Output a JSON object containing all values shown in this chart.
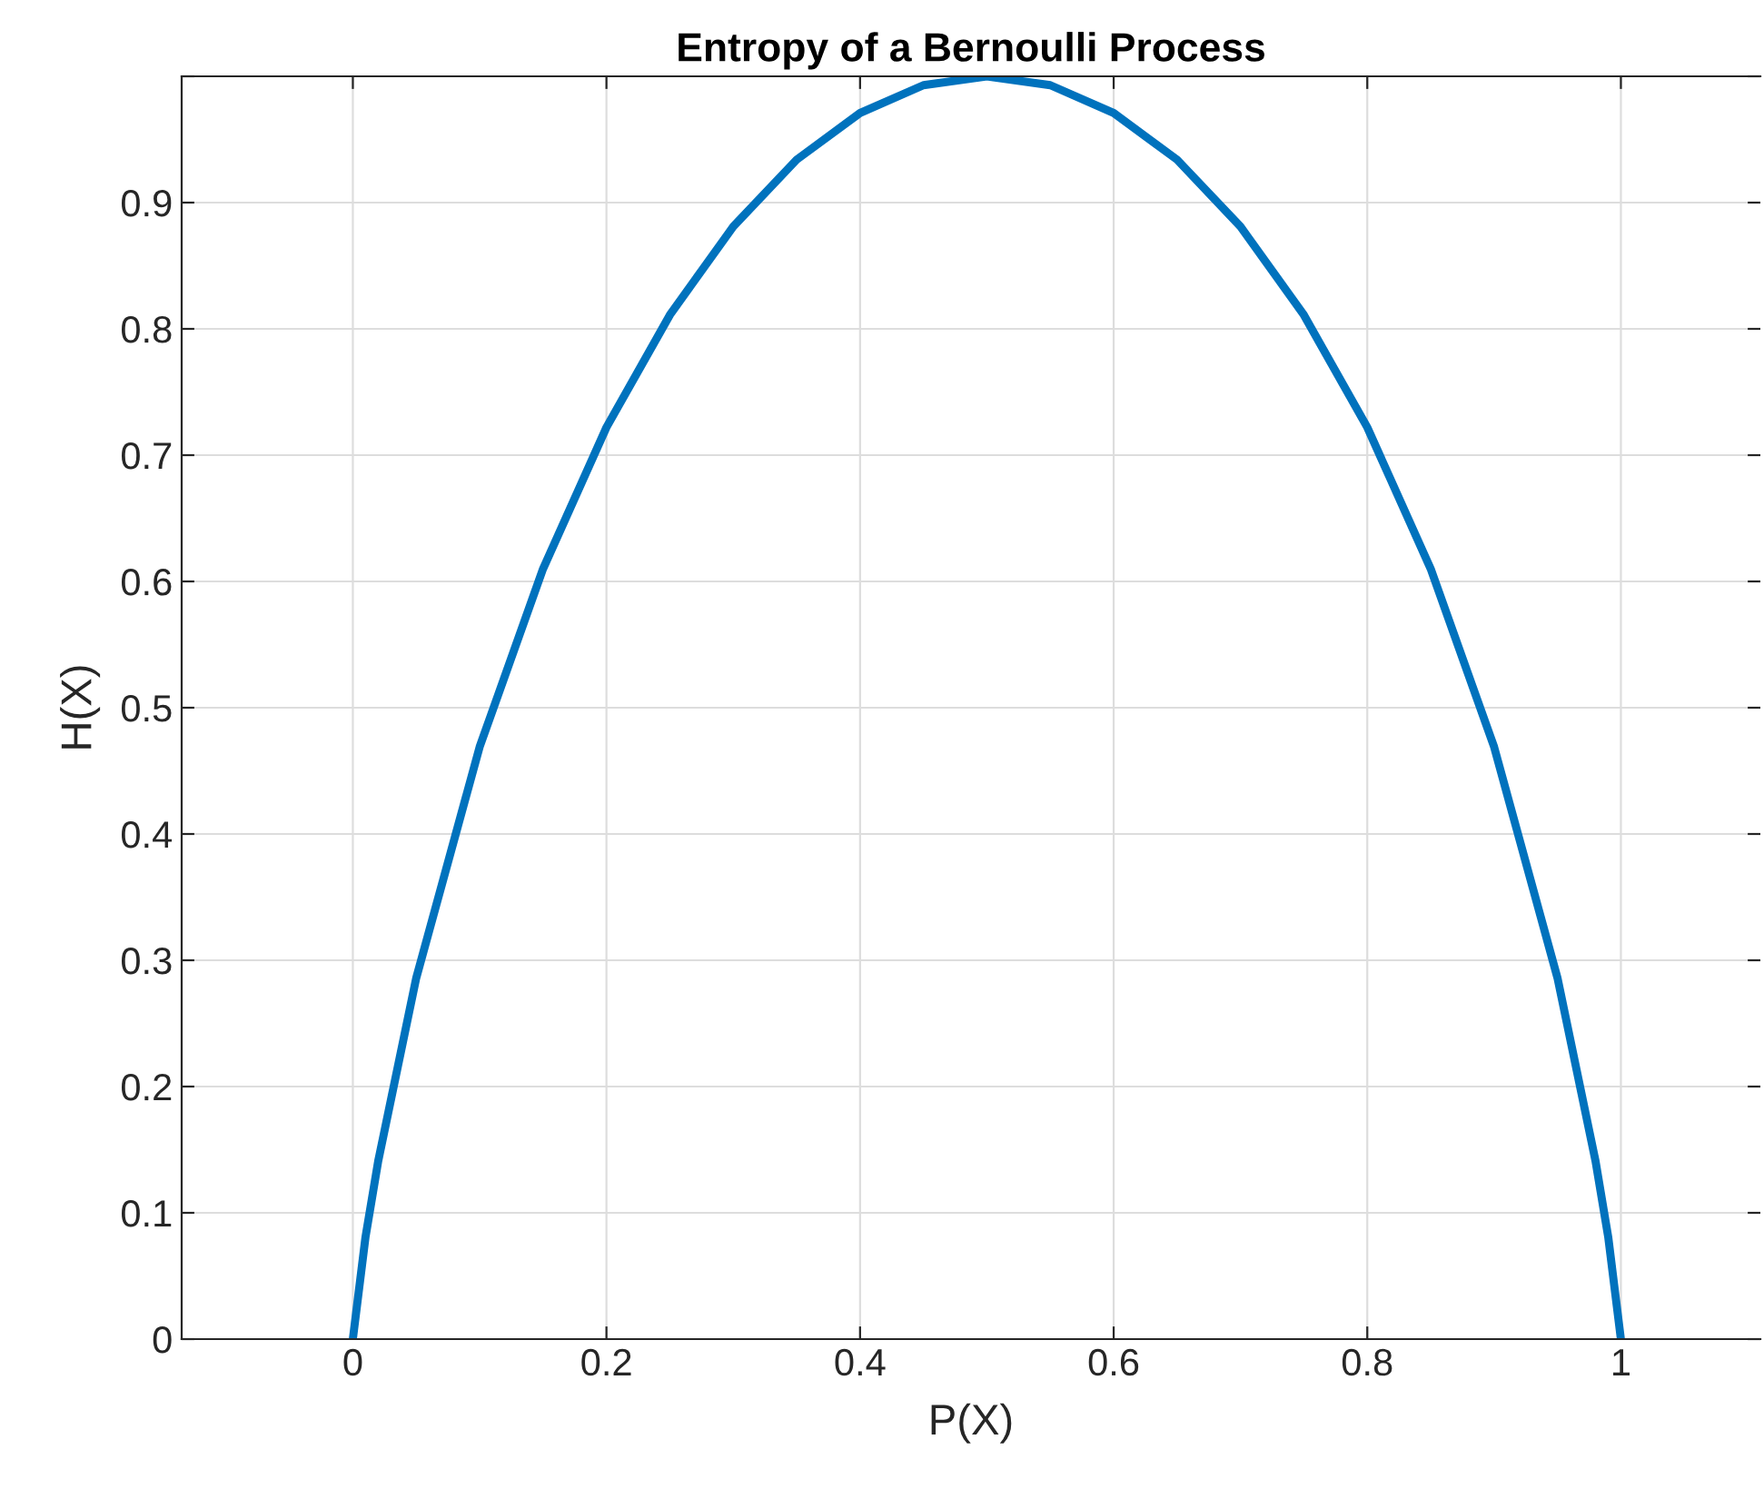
{
  "chart_data": {
    "type": "line",
    "title": "Entropy of a Bernoulli Process",
    "xlabel": "P(X)",
    "ylabel": "H(X)",
    "x": [
      0,
      0.01,
      0.02,
      0.05,
      0.1,
      0.15,
      0.2,
      0.25,
      0.3,
      0.35,
      0.4,
      0.45,
      0.5,
      0.55,
      0.6,
      0.65,
      0.7,
      0.75,
      0.8,
      0.85,
      0.9,
      0.95,
      0.98,
      0.99,
      1
    ],
    "series": [
      {
        "color": "#0072bd",
        "values": [
          0,
          0.081,
          0.141,
          0.286,
          0.469,
          0.61,
          0.722,
          0.811,
          0.881,
          0.934,
          0.971,
          0.993,
          1,
          0.993,
          0.971,
          0.934,
          0.881,
          0.811,
          0.722,
          0.61,
          0.469,
          0.286,
          0.141,
          0.081,
          0
        ]
      }
    ],
    "xlim": [
      -0.135,
      1.11
    ],
    "ylim": [
      0,
      1
    ],
    "xticks": [
      0,
      0.2,
      0.4,
      0.6,
      0.8,
      1
    ],
    "yticks": [
      0,
      0.1,
      0.2,
      0.3,
      0.4,
      0.5,
      0.6,
      0.7,
      0.8,
      0.9,
      {
        "value": 1,
        "label": null
      }
    ],
    "grid": true,
    "marker": "none",
    "line_style": "solid"
  }
}
